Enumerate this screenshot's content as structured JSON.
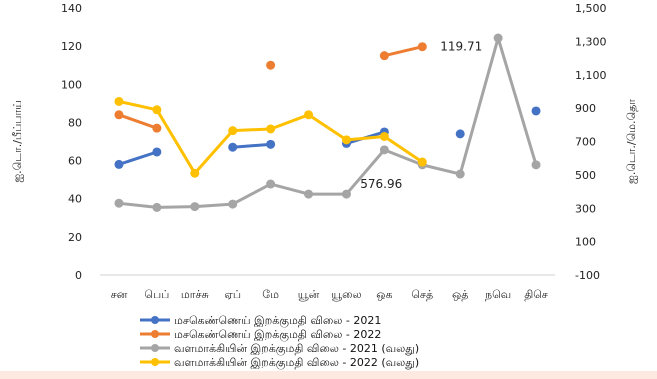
{
  "chart_data": {
    "type": "line",
    "categories": [
      "சன",
      "பெப்",
      "மாச்சு",
      "ஏப்",
      "மே",
      "யூன்",
      "யூலை",
      "ஒக",
      "செத்",
      "ஒத்",
      "நவெ",
      "திசெ"
    ],
    "y_left": {
      "label": "ஐ.டொ./பீப்பாய்",
      "lim": [
        0,
        140
      ],
      "ticks": [
        "0",
        "20",
        "40",
        "60",
        "80",
        "100",
        "120",
        "140"
      ]
    },
    "y_right": {
      "label": "ஐ.டொ./மெ.தொ",
      "lim": [
        -100,
        1500
      ],
      "ticks": [
        "-100",
        "100",
        "300",
        "500",
        "700",
        "900",
        "1,100",
        "1,300",
        "1,500"
      ]
    },
    "series": [
      {
        "name": "மசகெண்ணெய் இறக்குமதி விலை - 2021",
        "axis": "left",
        "color": "#4472c4",
        "values": [
          58,
          64.5,
          null,
          67,
          68.5,
          null,
          69,
          75,
          null,
          74,
          null,
          86
        ]
      },
      {
        "name": "மசகெண்ணெய் இறக்குமதி விலை - 2022",
        "axis": "left",
        "color": "#ed7d31",
        "values": [
          84,
          77,
          null,
          null,
          110,
          null,
          null,
          115,
          119.71,
          null,
          null,
          null
        ]
      },
      {
        "name": "வளமாக்கியின் இறக்குமதி விலை - 2021 (வலது)",
        "axis": "right",
        "color": "#a5a5a5",
        "values": [
          330,
          305,
          310,
          325,
          445,
          385,
          385,
          650,
          560,
          505,
          1320,
          560
        ]
      },
      {
        "name": "வளமாக்கியின் இறக்குமதி விலை - 2022 (வலது)",
        "axis": "right",
        "color": "#ffc000",
        "values": [
          940,
          890,
          510,
          765,
          775,
          860,
          710,
          730,
          576.96,
          null,
          null,
          null
        ]
      }
    ],
    "annotations": [
      {
        "text": "119.71",
        "series": 1,
        "index": 8
      },
      {
        "text": "576.96",
        "series": 3,
        "index": 8
      }
    ],
    "legend_position": "bottom"
  }
}
